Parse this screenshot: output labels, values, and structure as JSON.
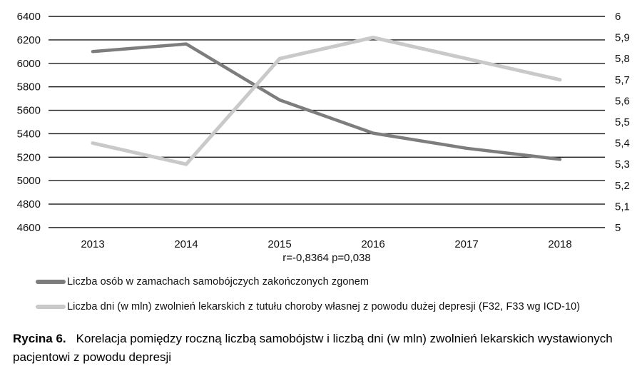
{
  "chart_data": {
    "type": "line",
    "x_labels": [
      "2013",
      "2014",
      "2015",
      "2016",
      "2017",
      "2018"
    ],
    "series": [
      {
        "name": "Liczba osób w zamachach samobójczych zakończonych zgonem",
        "axis": "left",
        "color": "#7d7d7d",
        "values": [
          6100,
          6165,
          5688,
          5405,
          5276,
          5182
        ]
      },
      {
        "name": "Liczba dni (w mln) zwolnień lekarskich z tutułu choroby własnej z powodu dużej depresji (F32, F33 wg ICD-10)",
        "axis": "right",
        "color": "#c9c9c9",
        "values": [
          5.4,
          5.3,
          5.8,
          5.9,
          5.8,
          5.7
        ]
      }
    ],
    "left_axis": {
      "min": 4600,
      "max": 6400,
      "step": 200,
      "tick_labels": [
        "6400",
        "6200",
        "6000",
        "5800",
        "5600",
        "5400",
        "5200",
        "5000",
        "4800",
        "4600"
      ]
    },
    "right_axis": {
      "min": 5,
      "max": 6,
      "step": 0.1,
      "tick_labels": [
        "6",
        "5,9",
        "5,8",
        "5,7",
        "5,6",
        "5,5",
        "5,4",
        "5,3",
        "5,2",
        "5,1",
        "5"
      ]
    },
    "annotation": "r=-0,8364 p=0,038",
    "grid": true,
    "legend_position": "bottom-left"
  },
  "annotation": {
    "text": "r=-0,8364 p=0,038"
  },
  "legend": {
    "items": [
      {
        "label": "Liczba osób w zamachach samobójczych zakończonych zgonem",
        "color": "#7d7d7d"
      },
      {
        "label": "Liczba dni (w mln) zwolnień lekarskich z tutułu choroby własnej z powodu dużej depresji (F32, F33 wg ICD-10)",
        "color": "#c9c9c9"
      }
    ]
  },
  "caption": {
    "label": "Rycina 6.",
    "text": "Korelacja pomiędzy roczną liczbą samobójstw i liczbą dni (w mln) zwolnień lekarskich wystawionych pacjentowi z powodu depresji"
  },
  "colors": {
    "grid": "#1a1a1a",
    "text": "#111111",
    "background": "#ffffff"
  }
}
